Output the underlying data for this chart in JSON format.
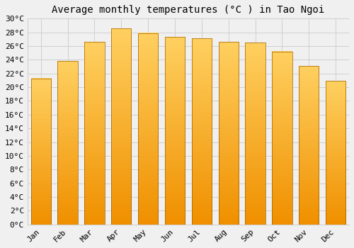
{
  "title": "Average monthly temperatures (°C ) in Tao Ngoi",
  "months": [
    "Jan",
    "Feb",
    "Mar",
    "Apr",
    "May",
    "Jun",
    "Jul",
    "Aug",
    "Sep",
    "Oct",
    "Nov",
    "Dec"
  ],
  "values": [
    21.3,
    23.8,
    26.6,
    28.6,
    27.9,
    27.3,
    27.1,
    26.6,
    26.5,
    25.2,
    23.1,
    20.9
  ],
  "bar_color_top": "#FFD060",
  "bar_color_bottom": "#F09000",
  "bar_edge_color": "#A06000",
  "background_color": "#f0f0f0",
  "grid_color": "#d0d0d0",
  "ylim": [
    0,
    30
  ],
  "ytick_step": 2,
  "title_fontsize": 10,
  "tick_fontsize": 8,
  "font_family": "monospace"
}
